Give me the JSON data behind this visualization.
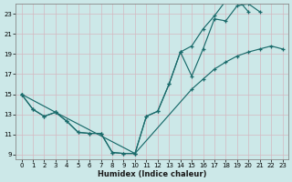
{
  "title": "",
  "xlabel": "Humidex (Indice chaleur)",
  "ylabel": "",
  "bg_color": "#cce8e8",
  "grid_color": "#b8d8d8",
  "line_color": "#1a6b6b",
  "xlim": [
    -0.5,
    23.5
  ],
  "ylim": [
    8.5,
    24.0
  ],
  "xticks": [
    0,
    1,
    2,
    3,
    4,
    5,
    6,
    7,
    8,
    9,
    10,
    11,
    12,
    13,
    14,
    15,
    16,
    17,
    18,
    19,
    20,
    21,
    22,
    23
  ],
  "yticks": [
    9,
    11,
    13,
    15,
    17,
    19,
    21,
    23
  ],
  "series": [
    {
      "x": [
        0,
        1,
        2,
        3,
        4,
        5,
        6,
        7,
        8,
        9,
        10,
        11,
        12,
        13,
        14,
        15,
        16,
        17,
        18,
        19,
        20,
        21
      ],
      "y": [
        15.0,
        13.5,
        12.8,
        13.2,
        12.3,
        11.2,
        11.1,
        11.1,
        9.2,
        9.1,
        9.1,
        12.8,
        13.3,
        16.0,
        19.2,
        16.8,
        19.5,
        22.5,
        22.3,
        23.8,
        24.0,
        23.2
      ]
    },
    {
      "x": [
        0,
        1,
        2,
        3,
        4,
        5,
        6,
        7,
        8,
        9,
        10,
        11,
        12,
        13,
        14,
        15,
        16,
        17,
        18,
        19,
        20
      ],
      "y": [
        15.0,
        13.5,
        12.8,
        13.2,
        12.3,
        11.2,
        11.1,
        11.1,
        9.2,
        9.1,
        9.1,
        12.8,
        13.3,
        16.0,
        19.2,
        19.8,
        21.5,
        22.8,
        24.3,
        24.5,
        23.2
      ]
    },
    {
      "x": [
        0,
        3,
        10,
        15,
        16,
        17,
        18,
        19,
        20,
        21,
        22,
        23
      ],
      "y": [
        15.0,
        13.2,
        9.1,
        15.5,
        16.5,
        17.5,
        18.2,
        18.8,
        19.2,
        19.5,
        19.8,
        19.5
      ]
    }
  ]
}
